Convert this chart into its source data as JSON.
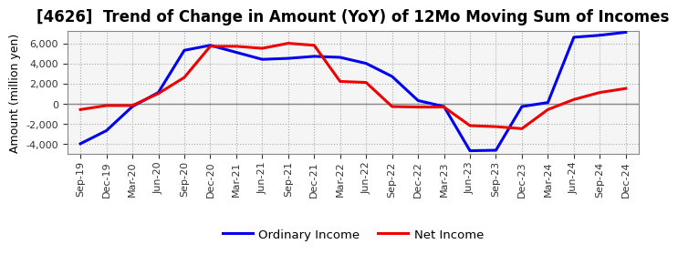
{
  "title": "[4626]  Trend of Change in Amount (YoY) of 12Mo Moving Sum of Incomes",
  "ylabel": "Amount (million yen)",
  "x_labels": [
    "Sep-19",
    "Dec-19",
    "Mar-20",
    "Jun-20",
    "Sep-20",
    "Dec-20",
    "Mar-21",
    "Jun-21",
    "Sep-21",
    "Dec-21",
    "Mar-22",
    "Jun-22",
    "Sep-22",
    "Dec-22",
    "Mar-23",
    "Jun-23",
    "Sep-23",
    "Dec-23",
    "Mar-24",
    "Jun-24",
    "Sep-24",
    "Dec-24"
  ],
  "ordinary_income": [
    -4000,
    -2700,
    -300,
    1100,
    5300,
    5800,
    5100,
    4400,
    4500,
    4700,
    4600,
    4000,
    2700,
    300,
    -300,
    -4700,
    -4650,
    -300,
    100,
    6600,
    6800,
    7100
  ],
  "net_income": [
    -600,
    -200,
    -200,
    1000,
    2600,
    5700,
    5700,
    5500,
    6000,
    5800,
    2200,
    2100,
    -300,
    -350,
    -350,
    -2200,
    -2300,
    -2500,
    -600,
    400,
    1100,
    1500
  ],
  "ordinary_color": "#0000EE",
  "net_color": "#EE0000",
  "ylim": [
    -5000,
    7200
  ],
  "yticks": [
    -4000,
    -2000,
    0,
    2000,
    4000,
    6000
  ],
  "background_color": "#FFFFFF",
  "plot_bg_color": "#F5F5F5",
  "grid_color": "#AAAAAA",
  "zero_line_color": "#888888",
  "legend_labels": [
    "Ordinary Income",
    "Net Income"
  ],
  "title_fontsize": 12,
  "label_fontsize": 9,
  "tick_fontsize": 8
}
